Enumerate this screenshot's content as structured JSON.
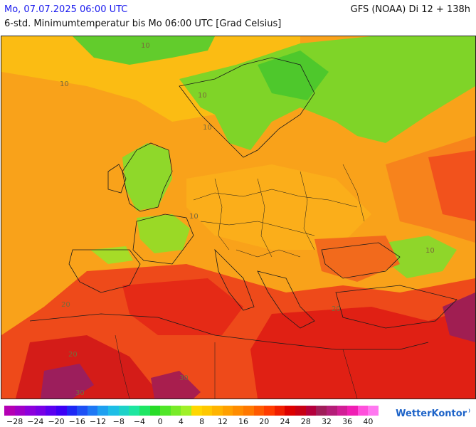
{
  "header": {
    "date_label": "Mo, 07.07.2025 06:00 UTC",
    "model_label": "GFS (NOAA) Di 12 + 138h",
    "parameter_label": "6-std. Minimumtemperatur bis Mo 06:00 UTC [Grad Celsius]"
  },
  "map": {
    "contour_labels": [
      "10",
      "10",
      "10",
      "10",
      "10",
      "10",
      "20",
      "20",
      "20",
      "30",
      "30"
    ]
  },
  "legend": {
    "colors": [
      "#b400b4",
      "#a000c8",
      "#8c00dc",
      "#7800e6",
      "#5a00f0",
      "#3c00f5",
      "#1e28f5",
      "#1e50f5",
      "#1e78f5",
      "#1ea0f0",
      "#1ebee6",
      "#1ed2c8",
      "#1ee6a0",
      "#1ee664",
      "#28dc28",
      "#50e628",
      "#78eb28",
      "#a0f028",
      "#ffd700",
      "#ffc800",
      "#ffb400",
      "#ffa000",
      "#ff8c00",
      "#ff7800",
      "#ff5a00",
      "#ff3c00",
      "#f01e00",
      "#dc0000",
      "#c80014",
      "#b4003c",
      "#a01e5a",
      "#b41e78",
      "#d21e96",
      "#f01eb4",
      "#ff50dc",
      "#ff78f0"
    ],
    "tick_labels": [
      "−28",
      "−24",
      "−20",
      "−16",
      "−12",
      "−8",
      "−4",
      "0",
      "4",
      "8",
      "12",
      "16",
      "20",
      "24",
      "28",
      "32",
      "36",
      "40"
    ]
  },
  "brand": {
    "name": "WetterKontor"
  }
}
